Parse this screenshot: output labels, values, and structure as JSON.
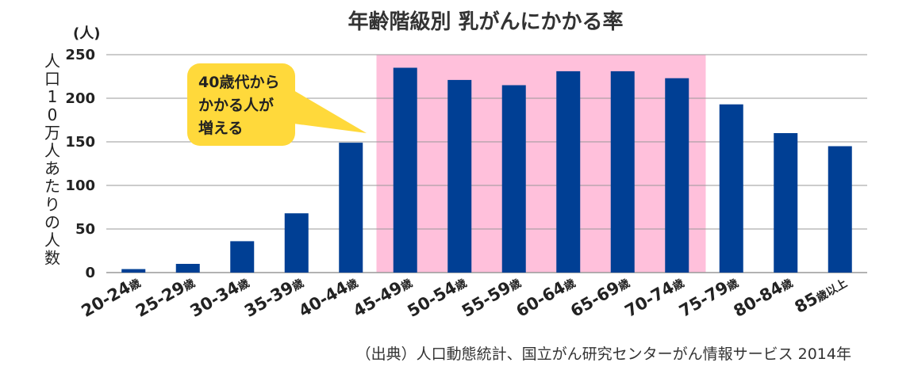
{
  "chart_data": {
    "type": "bar",
    "title": "年齢階級別 乳がんにかかる率",
    "y_unit": "(人)",
    "ylabel": "人口10万人あたりの人数",
    "ylim": [
      0,
      250
    ],
    "yticks": [
      "0",
      "50",
      "100",
      "150",
      "200",
      "250"
    ],
    "grid": true,
    "categories": [
      {
        "main": "20-24",
        "suffix": "歳"
      },
      {
        "main": "25-29",
        "suffix": "歳"
      },
      {
        "main": "30-34",
        "suffix": "歳"
      },
      {
        "main": "35-39",
        "suffix": "歳"
      },
      {
        "main": "40-44",
        "suffix": "歳"
      },
      {
        "main": "45-49",
        "suffix": "歳"
      },
      {
        "main": "50-54",
        "suffix": "歳"
      },
      {
        "main": "55-59",
        "suffix": "歳"
      },
      {
        "main": "60-64",
        "suffix": "歳"
      },
      {
        "main": "65-69",
        "suffix": "歳"
      },
      {
        "main": "70-74",
        "suffix": "歳"
      },
      {
        "main": "75-79",
        "suffix": "歳"
      },
      {
        "main": "80-84",
        "suffix": "歳"
      },
      {
        "main": "85",
        "suffix": "歳以上"
      }
    ],
    "values": [
      4,
      10,
      36,
      68,
      149,
      235,
      221,
      215,
      231,
      231,
      223,
      193,
      160,
      145
    ],
    "highlight_categories": [
      "45-49",
      "70-74"
    ],
    "callout_lines": [
      "40歳代から",
      "かかる人が",
      "増える"
    ],
    "colors": {
      "bar": "#003f94",
      "highlight": "#ffc0db",
      "callout": "#ffd93b",
      "grid": "#999999"
    }
  },
  "source": "（出典）人口動態統計、国立がん研究センターがん情報サービス 2014年"
}
